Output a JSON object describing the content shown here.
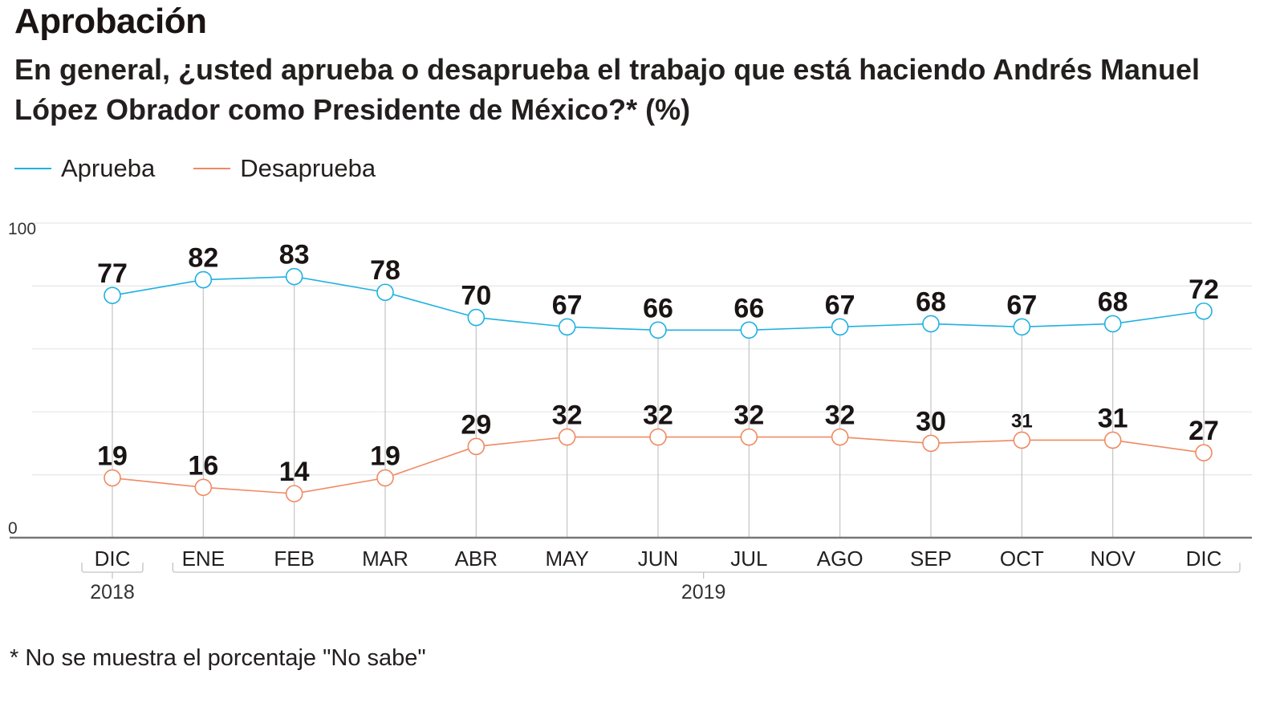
{
  "chart_data": {
    "type": "line",
    "title": "Aprobación",
    "subtitle": "En general, ¿usted aprueba o desaprueba el trabajo que está haciendo Andrés Manuel López Obrador como Presidente de México?*  (%)",
    "xlabel": "",
    "ylabel": "",
    "ylim": [
      0,
      100
    ],
    "y_ticks_labeled": [
      "0",
      "100"
    ],
    "gridlines": [
      0,
      20,
      40,
      60,
      80,
      100
    ],
    "grid": true,
    "legend_position": "top-left",
    "categories": [
      "DIC",
      "ENE",
      "FEB",
      "MAR",
      "ABR",
      "MAY",
      "JUN",
      "JUL",
      "AGO",
      "SEP",
      "OCT",
      "NOV",
      "DIC"
    ],
    "year_groups": [
      {
        "label": "2018",
        "from": 0,
        "to": 0
      },
      {
        "label": "2019",
        "from": 1,
        "to": 12
      }
    ],
    "series": [
      {
        "name": "Aprueba",
        "color": "#1fb1e0",
        "values": [
          77,
          82,
          83,
          78,
          70,
          67,
          66,
          66,
          67,
          68,
          67,
          68,
          72
        ]
      },
      {
        "name": "Desaprueba",
        "color": "#ef8a62",
        "values": [
          19,
          16,
          14,
          19,
          29,
          32,
          32,
          32,
          32,
          30,
          31,
          31,
          27
        ]
      }
    ],
    "small_labels": [
      {
        "series": 1,
        "index": 10
      }
    ],
    "footnote": "* No se muestra el porcentaje \"No sabe\""
  }
}
